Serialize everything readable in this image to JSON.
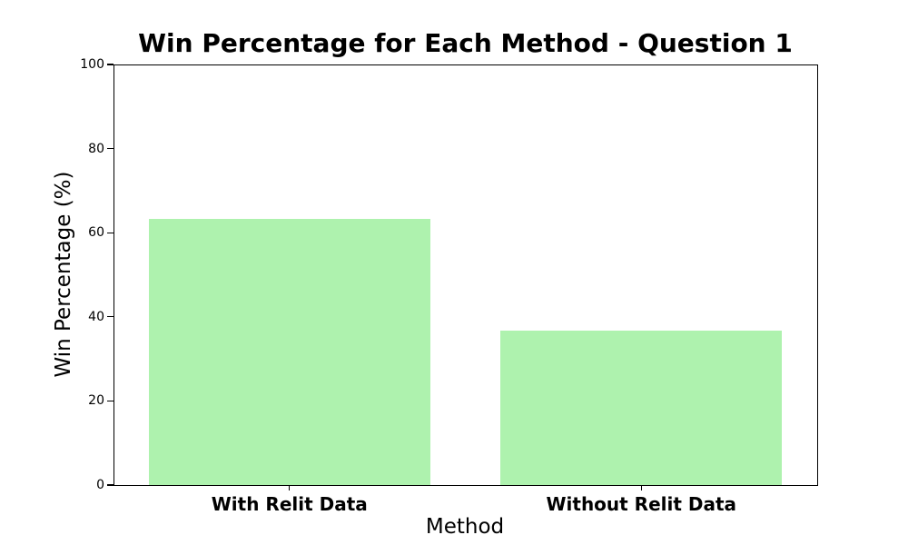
{
  "chart_data": {
    "type": "bar",
    "title": "Win Percentage for Each Method - Question 1",
    "xlabel": "Method",
    "ylabel": "Win Percentage (%)",
    "categories": [
      "With Relit Data",
      "Without Relit Data"
    ],
    "values": [
      63.33,
      36.67
    ],
    "ylim": [
      0,
      100
    ],
    "yticks": [
      0,
      20,
      40,
      60,
      80,
      100
    ],
    "bar_color": "#aef2ae",
    "bar_width_fraction": 0.8,
    "grid": false,
    "legend_position": "none",
    "text_color": "#000000",
    "background_color": "#ffffff"
  }
}
